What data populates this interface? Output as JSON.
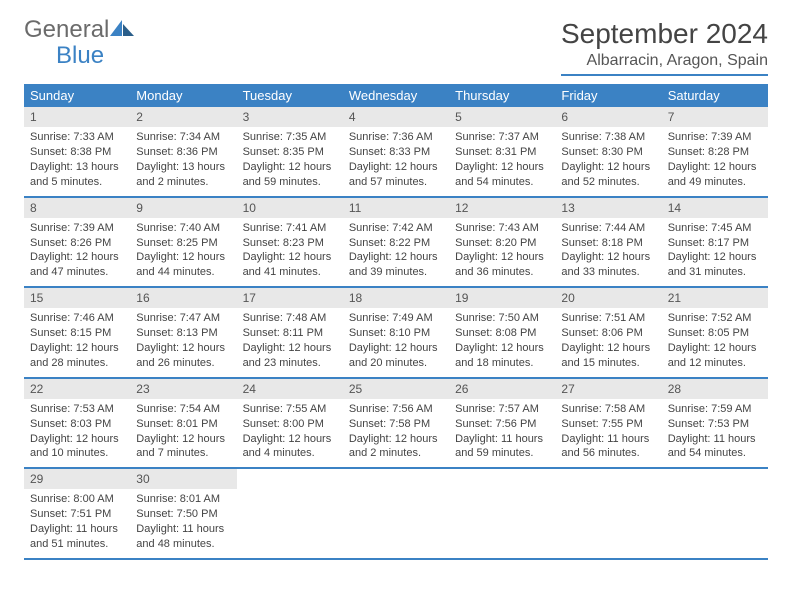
{
  "brand": {
    "word1": "General",
    "word2": "Blue"
  },
  "title": "September 2024",
  "location": "Albarracin, Aragon, Spain",
  "colors": {
    "accent": "#3b82c4",
    "header_bg": "#3b82c4",
    "daynum_bg": "#e8e8e8",
    "text": "#444444"
  },
  "weekdays": [
    "Sunday",
    "Monday",
    "Tuesday",
    "Wednesday",
    "Thursday",
    "Friday",
    "Saturday"
  ],
  "weeks": [
    [
      {
        "n": "1",
        "sr": "Sunrise: 7:33 AM",
        "ss": "Sunset: 8:38 PM",
        "dl": "Daylight: 13 hours and 5 minutes."
      },
      {
        "n": "2",
        "sr": "Sunrise: 7:34 AM",
        "ss": "Sunset: 8:36 PM",
        "dl": "Daylight: 13 hours and 2 minutes."
      },
      {
        "n": "3",
        "sr": "Sunrise: 7:35 AM",
        "ss": "Sunset: 8:35 PM",
        "dl": "Daylight: 12 hours and 59 minutes."
      },
      {
        "n": "4",
        "sr": "Sunrise: 7:36 AM",
        "ss": "Sunset: 8:33 PM",
        "dl": "Daylight: 12 hours and 57 minutes."
      },
      {
        "n": "5",
        "sr": "Sunrise: 7:37 AM",
        "ss": "Sunset: 8:31 PM",
        "dl": "Daylight: 12 hours and 54 minutes."
      },
      {
        "n": "6",
        "sr": "Sunrise: 7:38 AM",
        "ss": "Sunset: 8:30 PM",
        "dl": "Daylight: 12 hours and 52 minutes."
      },
      {
        "n": "7",
        "sr": "Sunrise: 7:39 AM",
        "ss": "Sunset: 8:28 PM",
        "dl": "Daylight: 12 hours and 49 minutes."
      }
    ],
    [
      {
        "n": "8",
        "sr": "Sunrise: 7:39 AM",
        "ss": "Sunset: 8:26 PM",
        "dl": "Daylight: 12 hours and 47 minutes."
      },
      {
        "n": "9",
        "sr": "Sunrise: 7:40 AM",
        "ss": "Sunset: 8:25 PM",
        "dl": "Daylight: 12 hours and 44 minutes."
      },
      {
        "n": "10",
        "sr": "Sunrise: 7:41 AM",
        "ss": "Sunset: 8:23 PM",
        "dl": "Daylight: 12 hours and 41 minutes."
      },
      {
        "n": "11",
        "sr": "Sunrise: 7:42 AM",
        "ss": "Sunset: 8:22 PM",
        "dl": "Daylight: 12 hours and 39 minutes."
      },
      {
        "n": "12",
        "sr": "Sunrise: 7:43 AM",
        "ss": "Sunset: 8:20 PM",
        "dl": "Daylight: 12 hours and 36 minutes."
      },
      {
        "n": "13",
        "sr": "Sunrise: 7:44 AM",
        "ss": "Sunset: 8:18 PM",
        "dl": "Daylight: 12 hours and 33 minutes."
      },
      {
        "n": "14",
        "sr": "Sunrise: 7:45 AM",
        "ss": "Sunset: 8:17 PM",
        "dl": "Daylight: 12 hours and 31 minutes."
      }
    ],
    [
      {
        "n": "15",
        "sr": "Sunrise: 7:46 AM",
        "ss": "Sunset: 8:15 PM",
        "dl": "Daylight: 12 hours and 28 minutes."
      },
      {
        "n": "16",
        "sr": "Sunrise: 7:47 AM",
        "ss": "Sunset: 8:13 PM",
        "dl": "Daylight: 12 hours and 26 minutes."
      },
      {
        "n": "17",
        "sr": "Sunrise: 7:48 AM",
        "ss": "Sunset: 8:11 PM",
        "dl": "Daylight: 12 hours and 23 minutes."
      },
      {
        "n": "18",
        "sr": "Sunrise: 7:49 AM",
        "ss": "Sunset: 8:10 PM",
        "dl": "Daylight: 12 hours and 20 minutes."
      },
      {
        "n": "19",
        "sr": "Sunrise: 7:50 AM",
        "ss": "Sunset: 8:08 PM",
        "dl": "Daylight: 12 hours and 18 minutes."
      },
      {
        "n": "20",
        "sr": "Sunrise: 7:51 AM",
        "ss": "Sunset: 8:06 PM",
        "dl": "Daylight: 12 hours and 15 minutes."
      },
      {
        "n": "21",
        "sr": "Sunrise: 7:52 AM",
        "ss": "Sunset: 8:05 PM",
        "dl": "Daylight: 12 hours and 12 minutes."
      }
    ],
    [
      {
        "n": "22",
        "sr": "Sunrise: 7:53 AM",
        "ss": "Sunset: 8:03 PM",
        "dl": "Daylight: 12 hours and 10 minutes."
      },
      {
        "n": "23",
        "sr": "Sunrise: 7:54 AM",
        "ss": "Sunset: 8:01 PM",
        "dl": "Daylight: 12 hours and 7 minutes."
      },
      {
        "n": "24",
        "sr": "Sunrise: 7:55 AM",
        "ss": "Sunset: 8:00 PM",
        "dl": "Daylight: 12 hours and 4 minutes."
      },
      {
        "n": "25",
        "sr": "Sunrise: 7:56 AM",
        "ss": "Sunset: 7:58 PM",
        "dl": "Daylight: 12 hours and 2 minutes."
      },
      {
        "n": "26",
        "sr": "Sunrise: 7:57 AM",
        "ss": "Sunset: 7:56 PM",
        "dl": "Daylight: 11 hours and 59 minutes."
      },
      {
        "n": "27",
        "sr": "Sunrise: 7:58 AM",
        "ss": "Sunset: 7:55 PM",
        "dl": "Daylight: 11 hours and 56 minutes."
      },
      {
        "n": "28",
        "sr": "Sunrise: 7:59 AM",
        "ss": "Sunset: 7:53 PM",
        "dl": "Daylight: 11 hours and 54 minutes."
      }
    ],
    [
      {
        "n": "29",
        "sr": "Sunrise: 8:00 AM",
        "ss": "Sunset: 7:51 PM",
        "dl": "Daylight: 11 hours and 51 minutes."
      },
      {
        "n": "30",
        "sr": "Sunrise: 8:01 AM",
        "ss": "Sunset: 7:50 PM",
        "dl": "Daylight: 11 hours and 48 minutes."
      },
      null,
      null,
      null,
      null,
      null
    ]
  ]
}
